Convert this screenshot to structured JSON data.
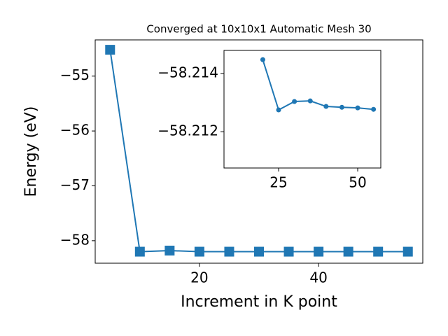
{
  "chart_data": [
    {
      "type": "line",
      "title": "Converged at 10x10x1 Automatic Mesh 30",
      "x_label": "Increment in K point",
      "y_label": "Energy (eV)",
      "x": [
        5,
        10,
        15,
        20,
        25,
        30,
        35,
        40,
        45,
        50,
        55
      ],
      "series": [
        {
          "name": "Energy",
          "color": "#1f77b4",
          "marker": "square",
          "values": [
            -54.52,
            -58.2,
            -58.18,
            -58.2,
            -58.2,
            -58.2,
            -58.2,
            -58.2,
            -58.2,
            -58.2,
            -58.2
          ]
        }
      ],
      "xlim": [
        2.5,
        57.5
      ],
      "ylim": [
        -58.41,
        -54.34
      ],
      "xticks": [
        20,
        40
      ],
      "yticks": [
        {
          "value": -58,
          "label": "−58"
        },
        {
          "value": -57,
          "label": "−57"
        },
        {
          "value": -56,
          "label": "−56"
        },
        {
          "value": -55,
          "label": "−55"
        }
      ]
    },
    {
      "type": "line",
      "x": [
        20,
        25,
        30,
        35,
        40,
        45,
        50,
        55
      ],
      "series": [
        {
          "name": "Energy",
          "color": "#1f77b4",
          "marker": "circle",
          "values": [
            -58.21448,
            -58.21275,
            -58.21304,
            -58.21306,
            -58.21287,
            -58.21284,
            -58.21282,
            -58.21277
          ]
        }
      ],
      "xlim": [
        7.74,
        57.3
      ],
      "ylim": [
        -58.21075,
        -58.2148
      ],
      "xticks": [
        25,
        50
      ],
      "yticks": [
        {
          "value": -58.214,
          "label": "−58.214"
        },
        {
          "value": -58.212,
          "label": "−58.212"
        }
      ]
    }
  ]
}
